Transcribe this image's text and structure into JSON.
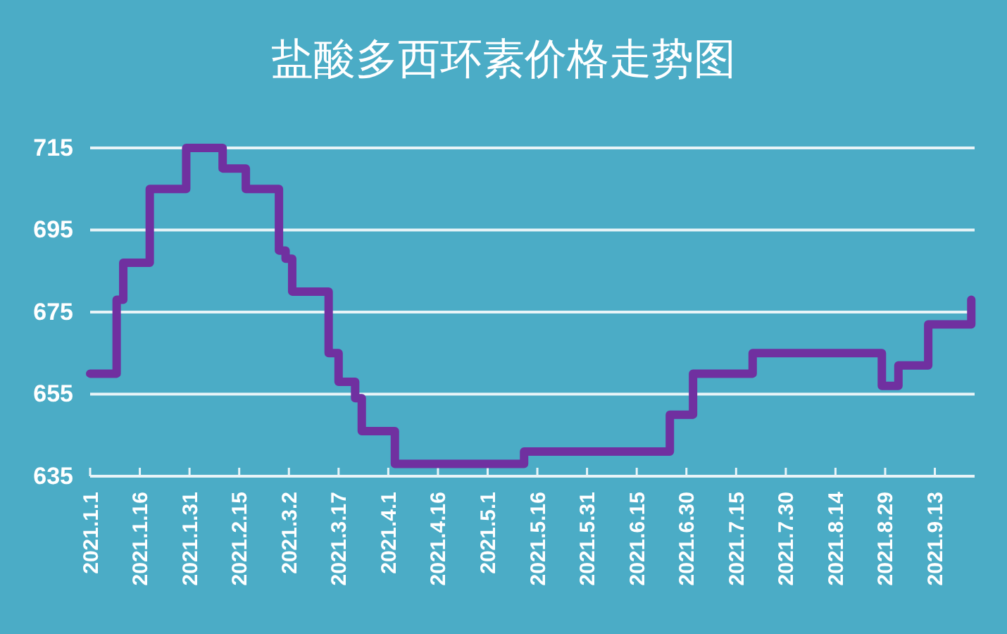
{
  "chart_data": {
    "type": "step",
    "title": "盐酸多西环素价格走势图",
    "x": [
      "2021-01-01",
      "2021-01-09",
      "2021-01-11",
      "2021-01-19",
      "2021-01-30",
      "2021-02-10",
      "2021-02-17",
      "2021-02-27",
      "2021-03-01",
      "2021-03-03",
      "2021-03-14",
      "2021-03-17",
      "2021-03-22",
      "2021-03-24",
      "2021-04-03",
      "2021-05-12",
      "2021-06-25",
      "2021-07-02",
      "2021-07-20",
      "2021-08-28",
      "2021-09-02",
      "2021-09-11",
      "2021-09-24"
    ],
    "series": [
      {
        "color": "#7030a0",
        "values": [
          660,
          678,
          687,
          705,
          715,
          710,
          705,
          690,
          688,
          680,
          665,
          658,
          654,
          646,
          638,
          641,
          650,
          660,
          665,
          657,
          662,
          672,
          678
        ]
      }
    ],
    "xlim": [
      "2021-01-01",
      "2021-09-25"
    ],
    "xticks": [
      {
        "value": "2021-01-01",
        "label": "2021.1.1"
      },
      {
        "value": "2021-01-16",
        "label": "2021.1.16"
      },
      {
        "value": "2021-01-31",
        "label": "2021.1.31"
      },
      {
        "value": "2021-02-15",
        "label": "2021.2.15"
      },
      {
        "value": "2021-03-02",
        "label": "2021.3.2"
      },
      {
        "value": "2021-03-17",
        "label": "2021.3.17"
      },
      {
        "value": "2021-04-01",
        "label": "2021.4.1"
      },
      {
        "value": "2021-04-16",
        "label": "2021.4.16"
      },
      {
        "value": "2021-05-01",
        "label": "2021.5.1"
      },
      {
        "value": "2021-05-16",
        "label": "2021.5.16"
      },
      {
        "value": "2021-05-31",
        "label": "2021.5.31"
      },
      {
        "value": "2021-06-15",
        "label": "2021.6.15"
      },
      {
        "value": "2021-06-30",
        "label": "2021.6.30"
      },
      {
        "value": "2021-07-15",
        "label": "2021.7.15"
      },
      {
        "value": "2021-07-30",
        "label": "2021.7.30"
      },
      {
        "value": "2021-08-14",
        "label": "2021.8.14"
      },
      {
        "value": "2021-08-29",
        "label": "2021.8.29"
      },
      {
        "value": "2021-09-13",
        "label": "2021.9.13"
      }
    ],
    "ylim": [
      635,
      715
    ],
    "yticks": [
      635,
      655,
      675,
      695,
      715
    ],
    "grid": "y",
    "marker": "none",
    "line_style": "solid"
  }
}
